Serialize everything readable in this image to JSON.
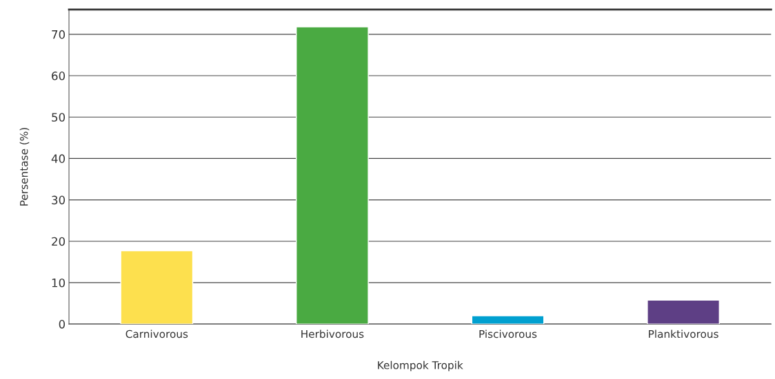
{
  "chart_data": {
    "type": "bar",
    "xlabel": "Kelompok Tropik",
    "ylabel": "Persentase (%)",
    "categories": [
      "Carnivorous",
      "Herbivorous",
      "Piscivorous",
      "Planktivorous"
    ],
    "values": [
      17.7,
      71.8,
      2.0,
      5.8
    ],
    "colors": [
      "#fde04e",
      "#4aaa42",
      "#00a0d0",
      "#5e3f85"
    ],
    "ylim": [
      0,
      76
    ],
    "yticks": [
      0,
      10,
      20,
      30,
      40,
      50,
      60,
      70
    ],
    "grid": "y",
    "legend": false
  }
}
